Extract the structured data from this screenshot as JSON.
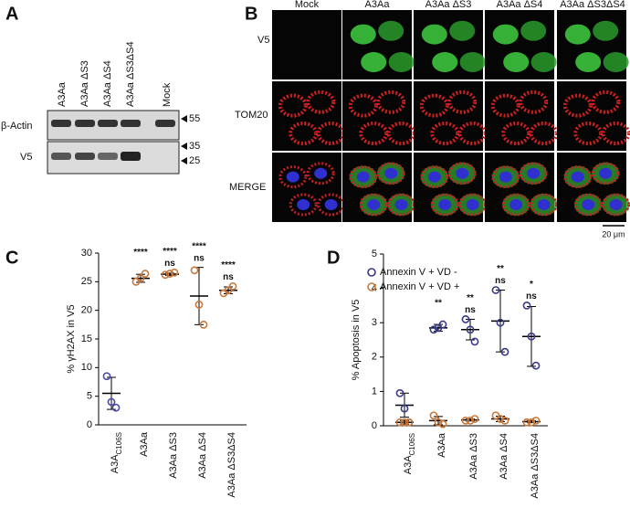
{
  "panel_a": {
    "letter": "A",
    "lanes": [
      "A3Aa",
      "A3Aa ΔS3",
      "A3Aa ΔS4",
      "A3Aa ΔS3ΔS4",
      "Mock"
    ],
    "rows": [
      "β-Actin",
      "V5"
    ],
    "markers": [
      "55",
      "35",
      "25"
    ]
  },
  "panel_b": {
    "letter": "B",
    "columns": [
      "Mock",
      "A3Aa",
      "A3Aa ΔS3",
      "A3Aa ΔS4",
      "A3Aa ΔS3ΔS4"
    ],
    "rows": [
      "V5",
      "TOM20",
      "MERGE"
    ],
    "scale_bar": "20 μm"
  },
  "chart_data": [
    {
      "type": "scatter",
      "letter": "C",
      "ylabel": "% γH2AX in V5",
      "categories": [
        "A3A",
        "A3Aa",
        "A3Aa ΔS3",
        "A3Aa ΔS4",
        "A3Aa ΔS3ΔS4"
      ],
      "subscripts": [
        "C106S",
        null,
        null,
        null,
        null
      ],
      "ylim": [
        0,
        30
      ],
      "yticks": [
        0,
        5,
        10,
        15,
        20,
        25,
        30
      ],
      "series": [
        {
          "colors": [
            "#4a4aa8",
            "#c8783a",
            "#c8783a",
            "#c8783a",
            "#c8783a"
          ],
          "points": [
            [
              8.5,
              4.0,
              3.0
            ],
            [
              25.0,
              25.6,
              26.4
            ],
            [
              26.2,
              26.4,
              26.6
            ],
            [
              27.0,
              21.0,
              17.5
            ],
            [
              23.0,
              23.5,
              24.2
            ]
          ],
          "mean": [
            5.5,
            25.6,
            26.3,
            22.5,
            23.5
          ],
          "sd": [
            2.8,
            0.7,
            0.2,
            5.0,
            0.6
          ]
        }
      ],
      "annotations": [
        {
          "color": "#4a4aa8",
          "labels": [
            null,
            "****",
            "****",
            "****",
            "****"
          ]
        },
        {
          "color": "#c8783a",
          "labels": [
            null,
            null,
            "ns",
            "ns",
            "ns"
          ]
        }
      ]
    },
    {
      "type": "scatter",
      "letter": "D",
      "ylabel": "% Apoptosis in V5",
      "categories": [
        "A3A",
        "A3Aa",
        "A3Aa ΔS3",
        "A3Aa ΔS4",
        "A3Aa ΔS3ΔS4"
      ],
      "subscripts": [
        "C106S",
        null,
        null,
        null,
        null
      ],
      "ylim": [
        0,
        5
      ],
      "yticks": [
        0,
        1,
        2,
        3,
        4,
        5
      ],
      "series": [
        {
          "name": "Annexin V + VD -",
          "color": "#3a3a8c",
          "points": [
            [
              0.95,
              0.5,
              0.1
            ],
            [
              2.8,
              2.85,
              2.95
            ],
            [
              3.1,
              2.8,
              2.45
            ],
            [
              3.95,
              3.0,
              2.15
            ],
            [
              3.5,
              2.6,
              1.75
            ]
          ],
          "mean": [
            0.6,
            2.85,
            2.8,
            3.05,
            2.6
          ],
          "sd": [
            0.35,
            0.1,
            0.3,
            0.9,
            0.87
          ]
        },
        {
          "name": "Annexin V + VD +",
          "color": "#c8783a",
          "points": [
            [
              0.1,
              0.1,
              0.1
            ],
            [
              0.3,
              0.1,
              0.05
            ],
            [
              0.15,
              0.15,
              0.2
            ],
            [
              0.3,
              0.2,
              0.15
            ],
            [
              0.1,
              0.1,
              0.15
            ]
          ],
          "mean": [
            0.1,
            0.15,
            0.17,
            0.2,
            0.12
          ],
          "sd": [
            0.05,
            0.12,
            0.03,
            0.08,
            0.03
          ]
        }
      ],
      "annotations": [
        {
          "color": "#4a4aa8",
          "labels": [
            null,
            "**",
            "**",
            "**",
            "*"
          ]
        },
        {
          "color": "#c8783a",
          "labels": [
            null,
            null,
            "ns",
            "ns",
            "ns"
          ]
        }
      ]
    }
  ]
}
